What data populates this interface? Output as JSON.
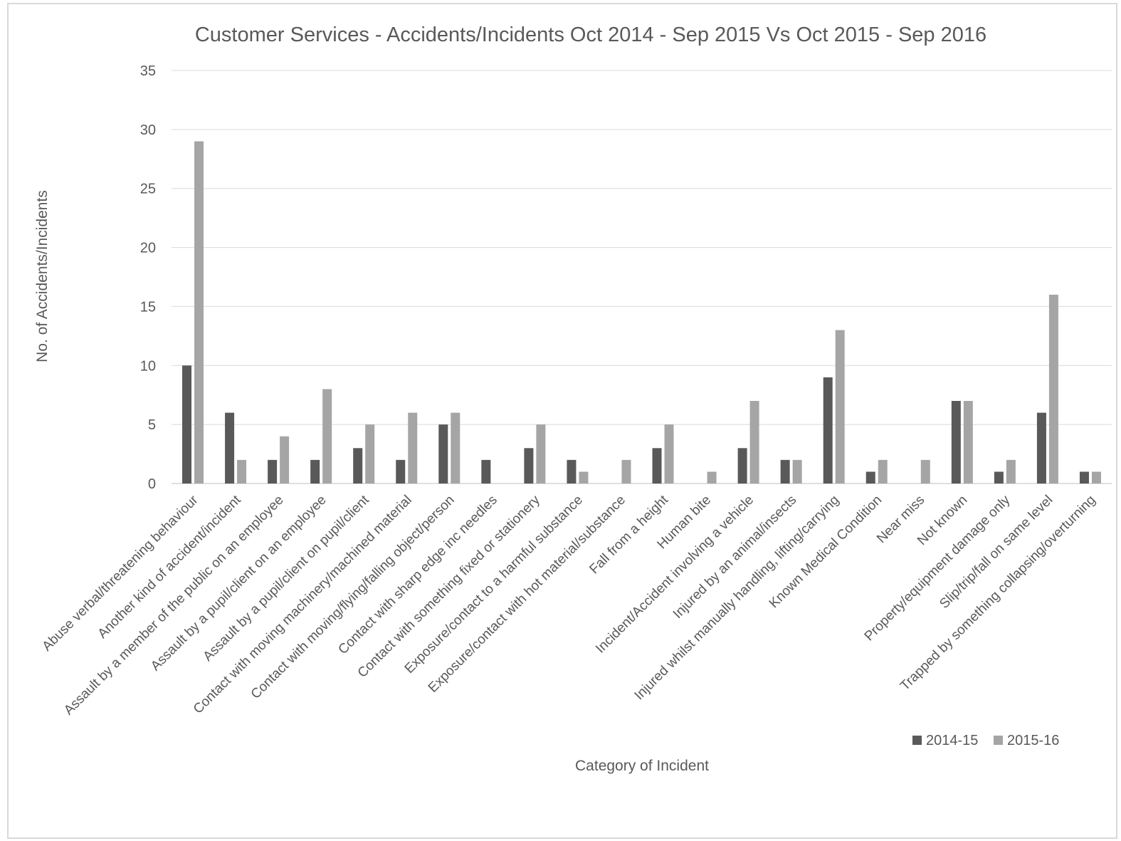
{
  "chart_data": {
    "type": "bar",
    "title": "Customer Services - Accidents/Incidents Oct 2014 - Sep 2015 Vs Oct 2015 - Sep 2016",
    "xlabel": "Category of Incident",
    "ylabel": "No. of Accidents/Incidents",
    "ylim": [
      0,
      35
    ],
    "yticks": [
      "0",
      "5",
      "10",
      "15",
      "20",
      "25",
      "30",
      "35"
    ],
    "grid": true,
    "legend_position": "bottom-right",
    "categories": [
      "Abuse verbal/threatening behaviour",
      "Another kind of accident/incident",
      "Assault by a member of the public on an employee",
      "Assault by a pupil/client on an employee",
      "Assault by a pupil/client on pupil/client",
      "Contact with moving machinery/machined material",
      "Contact with moving/flying/falling object/person",
      "Contact with sharp edge inc needles",
      "Contact with something fixed or stationery",
      "Exposure/contact to a harmful substance",
      "Exposure/contact with hot material/substance",
      "Fall from a height",
      "Human bite",
      "Incident/Accident involving a vehicle",
      "Injured by an animal/insects",
      "Injured whilst manually handling, lifting/carrying",
      "Known Medical Condition",
      "Near miss",
      "Not known",
      "Property/equipment damage only",
      "Slip/trip/fall on same level",
      "Trapped by something collapsing/overturning"
    ],
    "series": [
      {
        "name": "2014-15",
        "color": "#595959",
        "values": [
          10,
          6,
          2,
          2,
          3,
          2,
          5,
          2,
          3,
          2,
          0,
          3,
          0,
          3,
          2,
          9,
          1,
          0,
          7,
          1,
          6,
          1
        ]
      },
      {
        "name": "2015-16",
        "color": "#a5a5a5",
        "values": [
          29,
          2,
          4,
          8,
          5,
          6,
          6,
          0,
          5,
          1,
          2,
          5,
          1,
          7,
          2,
          13,
          2,
          2,
          7,
          2,
          16,
          1
        ]
      }
    ]
  }
}
